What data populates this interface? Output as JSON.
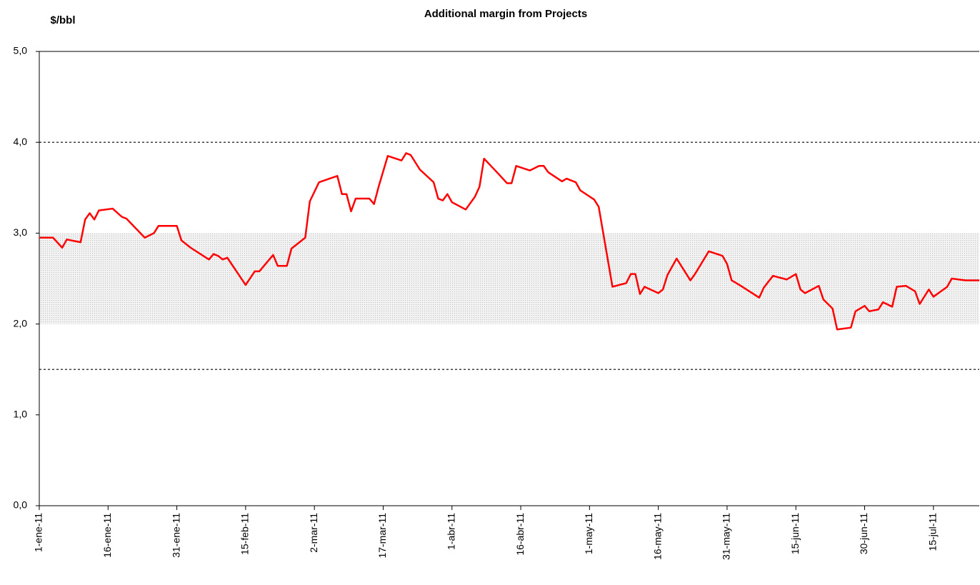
{
  "chart_data": {
    "type": "line",
    "title": "Additional margin from Projects",
    "y_label": "$/bbl",
    "x": [
      "2011-01-01",
      "2011-01-04",
      "2011-01-06",
      "2011-01-07",
      "2011-01-10",
      "2011-01-11",
      "2011-01-12",
      "2011-01-13",
      "2011-01-14",
      "2011-01-17",
      "2011-01-19",
      "2011-01-20",
      "2011-01-24",
      "2011-01-26",
      "2011-01-27",
      "2011-01-31",
      "2011-02-01",
      "2011-02-03",
      "2011-02-07",
      "2011-02-08",
      "2011-02-09",
      "2011-02-10",
      "2011-02-11",
      "2011-02-15",
      "2011-02-17",
      "2011-02-18",
      "2011-02-21",
      "2011-02-22",
      "2011-02-24",
      "2011-02-25",
      "2011-02-28",
      "2011-03-01",
      "2011-03-03",
      "2011-03-07",
      "2011-03-08",
      "2011-03-09",
      "2011-03-10",
      "2011-03-11",
      "2011-03-14",
      "2011-03-15",
      "2011-03-16",
      "2011-03-18",
      "2011-03-21",
      "2011-03-22",
      "2011-03-23",
      "2011-03-25",
      "2011-03-28",
      "2011-03-29",
      "2011-03-30",
      "2011-03-31",
      "2011-04-01",
      "2011-04-04",
      "2011-04-06",
      "2011-04-07",
      "2011-04-08",
      "2011-04-11",
      "2011-04-13",
      "2011-04-14",
      "2011-04-15",
      "2011-04-18",
      "2011-04-20",
      "2011-04-21",
      "2011-04-22",
      "2011-04-25",
      "2011-04-26",
      "2011-04-28",
      "2011-04-29",
      "2011-05-02",
      "2011-05-03",
      "2011-05-06",
      "2011-05-09",
      "2011-05-10",
      "2011-05-11",
      "2011-05-12",
      "2011-05-13",
      "2011-05-16",
      "2011-05-17",
      "2011-05-18",
      "2011-05-20",
      "2011-05-23",
      "2011-05-24",
      "2011-05-27",
      "2011-05-30",
      "2011-05-31",
      "2011-06-01",
      "2011-06-02",
      "2011-06-03",
      "2011-06-07",
      "2011-06-08",
      "2011-06-10",
      "2011-06-13",
      "2011-06-15",
      "2011-06-16",
      "2011-06-17",
      "2011-06-20",
      "2011-06-21",
      "2011-06-23",
      "2011-06-24",
      "2011-06-27",
      "2011-06-28",
      "2011-06-30",
      "2011-07-01",
      "2011-07-03",
      "2011-07-04",
      "2011-07-06",
      "2011-07-07",
      "2011-07-09",
      "2011-07-11",
      "2011-07-12",
      "2011-07-14",
      "2011-07-15",
      "2011-07-18",
      "2011-07-19",
      "2011-07-22",
      "2011-07-25"
    ],
    "series": [
      {
        "name": "Additional margin",
        "color": "#ff0000",
        "values": [
          2.95,
          2.95,
          2.84,
          2.93,
          2.9,
          3.15,
          3.22,
          3.15,
          3.25,
          3.27,
          3.18,
          3.16,
          2.95,
          3.0,
          3.08,
          3.08,
          2.92,
          2.84,
          2.71,
          2.77,
          2.75,
          2.71,
          2.73,
          2.43,
          2.58,
          2.58,
          2.76,
          2.64,
          2.64,
          2.83,
          2.95,
          3.35,
          3.56,
          3.63,
          3.43,
          3.43,
          3.24,
          3.38,
          3.38,
          3.32,
          3.51,
          3.85,
          3.8,
          3.88,
          3.86,
          3.7,
          3.56,
          3.38,
          3.36,
          3.43,
          3.34,
          3.26,
          3.4,
          3.51,
          3.82,
          3.66,
          3.55,
          3.55,
          3.74,
          3.69,
          3.74,
          3.74,
          3.67,
          3.57,
          3.6,
          3.56,
          3.47,
          3.37,
          3.29,
          2.41,
          2.45,
          2.55,
          2.55,
          2.33,
          2.41,
          2.34,
          2.38,
          2.54,
          2.72,
          2.48,
          2.55,
          2.8,
          2.75,
          2.66,
          2.48,
          2.45,
          2.42,
          2.29,
          2.4,
          2.53,
          2.49,
          2.55,
          2.38,
          2.34,
          2.42,
          2.27,
          2.17,
          1.94,
          1.96,
          2.14,
          2.2,
          2.14,
          2.16,
          2.24,
          2.19,
          2.41,
          2.42,
          2.36,
          2.22,
          2.38,
          2.3,
          2.41,
          2.5,
          2.48,
          2.48
        ]
      }
    ],
    "xlim": [
      "2011-01-01",
      "2011-07-25"
    ],
    "xticks": [
      {
        "value": "2011-01-01",
        "label": "1-ene-11"
      },
      {
        "value": "2011-01-16",
        "label": "16-ene-11"
      },
      {
        "value": "2011-01-31",
        "label": "31-ene-11"
      },
      {
        "value": "2011-02-15",
        "label": "15-feb-11"
      },
      {
        "value": "2011-03-02",
        "label": "2-mar-11"
      },
      {
        "value": "2011-03-17",
        "label": "17-mar-11"
      },
      {
        "value": "2011-04-01",
        "label": "1-abr-11"
      },
      {
        "value": "2011-04-16",
        "label": "16-abr-11"
      },
      {
        "value": "2011-05-01",
        "label": "1-may-11"
      },
      {
        "value": "2011-05-16",
        "label": "16-may-11"
      },
      {
        "value": "2011-05-31",
        "label": "31-may-11"
      },
      {
        "value": "2011-06-15",
        "label": "15-jun-11"
      },
      {
        "value": "2011-06-30",
        "label": "30-jun-11"
      },
      {
        "value": "2011-07-15",
        "label": "15-jul-11"
      }
    ],
    "ylim": [
      0,
      5
    ],
    "yticks": [
      {
        "value": 0,
        "label": "0,0"
      },
      {
        "value": 1,
        "label": "1,0"
      },
      {
        "value": 2,
        "label": "2,0"
      },
      {
        "value": 3,
        "label": "3,0"
      },
      {
        "value": 4,
        "label": "4,0"
      },
      {
        "value": 5,
        "label": "5,0"
      }
    ],
    "shaded_band": [
      2,
      3
    ],
    "reference_lines": [
      4,
      1.5
    ],
    "grid": false
  }
}
